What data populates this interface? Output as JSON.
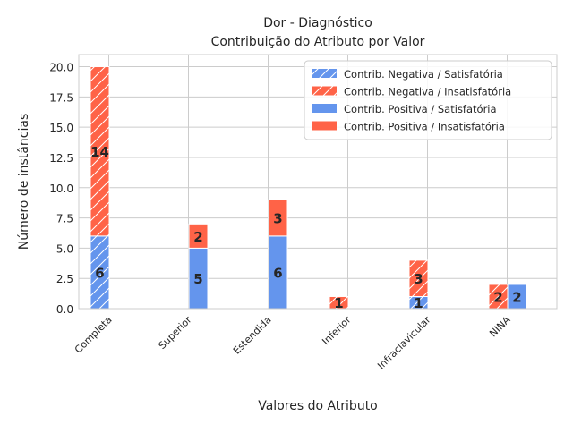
{
  "chart_data": {
    "type": "bar",
    "title_line1": "Dor - Diagnóstico",
    "title_line2": "Contribuição do Atributo por Valor",
    "xlabel": "Valores do Atributo",
    "ylabel": "Número de instâncias",
    "categories": [
      "Completa",
      "Superior",
      "Estendida",
      "Inferior",
      "Infraclavicular",
      "NINA"
    ],
    "ylim": [
      0,
      21
    ],
    "yticks": [
      "0.0",
      "2.5",
      "5.0",
      "7.5",
      "10.0",
      "12.5",
      "15.0",
      "17.5",
      "20.0"
    ],
    "grid": true,
    "legend_position": "top-right",
    "series": [
      {
        "name": "Contrib. Negativa / Satisfatória",
        "values": [
          6,
          0,
          0,
          0,
          1,
          0
        ],
        "color": "#6495ED",
        "hatch": true,
        "slot": 0,
        "stack": "bottom"
      },
      {
        "name": "Contrib. Negativa / Insatisfatória",
        "values": [
          14,
          0,
          0,
          1,
          3,
          2
        ],
        "color": "#FF6347",
        "hatch": true,
        "slot": 0,
        "stack": "top"
      },
      {
        "name": "Contrib. Positiva / Satisfatória",
        "values": [
          0,
          5,
          6,
          0,
          0,
          2
        ],
        "color": "#6495ED",
        "hatch": false,
        "slot": 1,
        "stack": "bottom"
      },
      {
        "name": "Contrib. Positiva / Insatisfatória",
        "values": [
          0,
          2,
          3,
          0,
          0,
          0
        ],
        "color": "#FF6347",
        "hatch": false,
        "slot": 1,
        "stack": "top"
      }
    ],
    "bar_labels": [
      [
        "6",
        "",
        "",
        "",
        "1",
        ""
      ],
      [
        "14",
        "",
        "",
        "1",
        "3",
        "2"
      ],
      [
        "",
        "5",
        "6",
        "",
        "",
        "2"
      ],
      [
        "",
        "2",
        "3",
        "",
        "",
        ""
      ]
    ]
  }
}
